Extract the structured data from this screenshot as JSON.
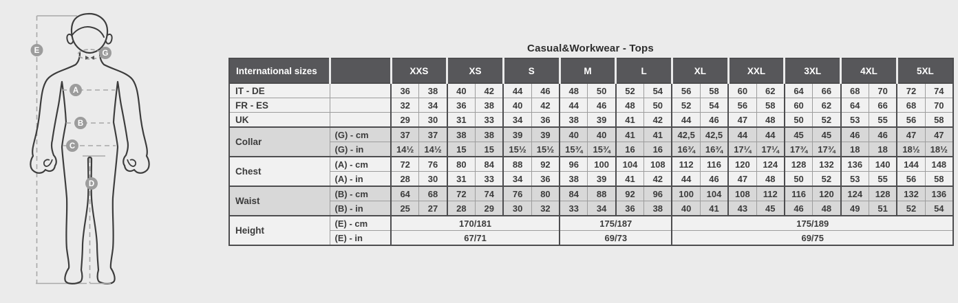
{
  "title": "Casual&Workwear - Tops",
  "colors": {
    "page_bg": "#ebebeb",
    "header_bg": "#57575a",
    "header_text": "#ffffff",
    "row_light": "#f1f1f1",
    "row_dark": "#d8d8d8",
    "border_strong": "#4c4c4e",
    "border_thin": "#9c9c9c",
    "cell_text": "#3b3b3b",
    "figure_outline": "#3d3d3d",
    "figure_dash": "#a8a8a8",
    "label_circle": "#9c9c9c"
  },
  "diagram": {
    "labels": [
      {
        "letter": "E",
        "measure": "height"
      },
      {
        "letter": "G",
        "measure": "collar"
      },
      {
        "letter": "A",
        "measure": "chest"
      },
      {
        "letter": "B",
        "measure": "waist"
      },
      {
        "letter": "C",
        "measure": "hip"
      },
      {
        "letter": "D",
        "measure": "inside-leg"
      }
    ]
  },
  "table": {
    "corner_label": "International sizes",
    "sizes": [
      "XXS",
      "XS",
      "S",
      "M",
      "L",
      "XL",
      "XXL",
      "3XL",
      "4XL",
      "5XL"
    ],
    "row_groups": [
      {
        "label": "IT - DE",
        "shade": "light",
        "rows": [
          {
            "unit": "",
            "values": [
              "36",
              "38",
              "40",
              "42",
              "44",
              "46",
              "48",
              "50",
              "52",
              "54",
              "56",
              "58",
              "60",
              "62",
              "64",
              "66",
              "68",
              "70",
              "72",
              "74"
            ]
          }
        ]
      },
      {
        "label": "FR - ES",
        "shade": "light",
        "rows": [
          {
            "unit": "",
            "values": [
              "32",
              "34",
              "36",
              "38",
              "40",
              "42",
              "44",
              "46",
              "48",
              "50",
              "52",
              "54",
              "56",
              "58",
              "60",
              "62",
              "64",
              "66",
              "68",
              "70"
            ]
          }
        ]
      },
      {
        "label": "UK",
        "shade": "light",
        "rows": [
          {
            "unit": "",
            "values": [
              "29",
              "30",
              "31",
              "33",
              "34",
              "36",
              "38",
              "39",
              "41",
              "42",
              "44",
              "46",
              "47",
              "48",
              "50",
              "52",
              "53",
              "55",
              "56",
              "58"
            ]
          }
        ]
      },
      {
        "label": "Collar",
        "shade": "dark",
        "rows": [
          {
            "unit": "(G) - cm",
            "values": [
              "37",
              "37",
              "38",
              "38",
              "39",
              "39",
              "40",
              "40",
              "41",
              "41",
              "42,5",
              "42,5",
              "44",
              "44",
              "45",
              "45",
              "46",
              "46",
              "47",
              "47"
            ]
          },
          {
            "unit": "(G) - in",
            "values": [
              "14½",
              "14½",
              "15",
              "15",
              "15½",
              "15½",
              "15¾",
              "15¾",
              "16",
              "16",
              "16¾",
              "16¾",
              "17¼",
              "17¼",
              "17¾",
              "17¾",
              "18",
              "18",
              "18½",
              "18½"
            ]
          }
        ]
      },
      {
        "label": "Chest",
        "shade": "light",
        "rows": [
          {
            "unit": "(A) - cm",
            "values": [
              "72",
              "76",
              "80",
              "84",
              "88",
              "92",
              "96",
              "100",
              "104",
              "108",
              "112",
              "116",
              "120",
              "124",
              "128",
              "132",
              "136",
              "140",
              "144",
              "148"
            ]
          },
          {
            "unit": "(A) - in",
            "values": [
              "28",
              "30",
              "31",
              "33",
              "34",
              "36",
              "38",
              "39",
              "41",
              "42",
              "44",
              "46",
              "47",
              "48",
              "50",
              "52",
              "53",
              "55",
              "56",
              "58"
            ]
          }
        ]
      },
      {
        "label": "Waist",
        "shade": "dark",
        "rows": [
          {
            "unit": "(B) - cm",
            "values": [
              "64",
              "68",
              "72",
              "74",
              "76",
              "80",
              "84",
              "88",
              "92",
              "96",
              "100",
              "104",
              "108",
              "112",
              "116",
              "120",
              "124",
              "128",
              "132",
              "136"
            ]
          },
          {
            "unit": "(B) - in",
            "values": [
              "25",
              "27",
              "28",
              "29",
              "30",
              "32",
              "33",
              "34",
              "36",
              "38",
              "40",
              "41",
              "43",
              "45",
              "46",
              "48",
              "49",
              "51",
              "52",
              "54"
            ]
          }
        ]
      },
      {
        "label": "Height",
        "shade": "light",
        "rows": [
          {
            "unit": "(E) - cm",
            "spans": [
              {
                "text": "170/181",
                "cols": 6
              },
              {
                "text": "175/187",
                "cols": 4
              },
              {
                "text": "175/189",
                "cols": 10
              }
            ]
          },
          {
            "unit": "(E) - in",
            "spans": [
              {
                "text": "67/71",
                "cols": 6
              },
              {
                "text": "69/73",
                "cols": 4
              },
              {
                "text": "69/75",
                "cols": 10
              }
            ]
          }
        ]
      }
    ]
  }
}
